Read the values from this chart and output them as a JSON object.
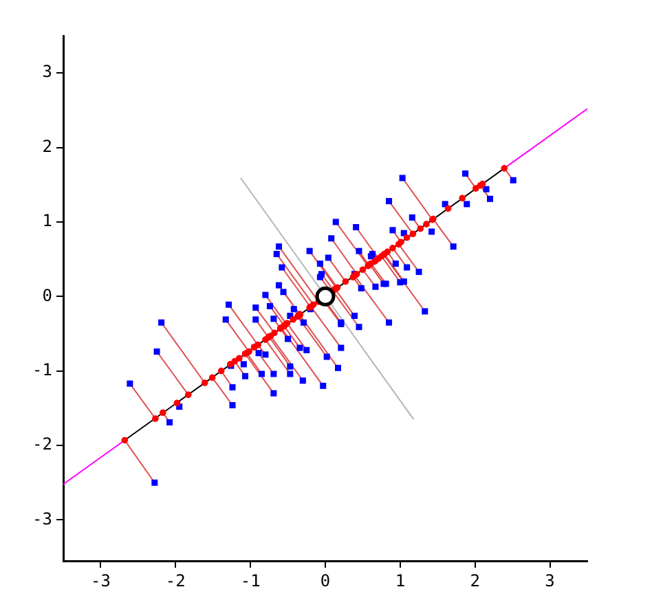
{
  "chart_data": {
    "type": "scatter",
    "xlim": [
      -3.5,
      3.5
    ],
    "ylim": [
      -3.55,
      3.5
    ],
    "xticks": [
      -3,
      -2,
      -1,
      0,
      1,
      2,
      3
    ],
    "yticks": [
      -3,
      -2,
      -1,
      0,
      1,
      2,
      3
    ],
    "grid": false,
    "legend": false,
    "series": [
      {
        "type": "line",
        "color": "#e05050",
        "marker": "none",
        "x": [
          -1.29,
          -0.9,
          null,
          -1.33,
          -1.02,
          null,
          -2.19,
          -1.61,
          null,
          -2.25,
          -1.83,
          null,
          -2.61,
          -2.27,
          null,
          -2.28,
          -2.68,
          null,
          -2.08,
          -2.17,
          null,
          -1.24,
          -1.51,
          null,
          -1.24,
          -1.39,
          null,
          -1.07,
          -1.21,
          null,
          -1.09,
          -1.15,
          null,
          -0.89,
          -0.95,
          null,
          -0.8,
          -0.9,
          null,
          -0.85,
          -1.05,
          null,
          -0.69,
          -0.95,
          null,
          -0.69,
          -1.07,
          null,
          -0.47,
          -0.8,
          null,
          -0.47,
          -0.75,
          null,
          -0.3,
          -0.73,
          null,
          -0.03,
          -0.59,
          null,
          0.02,
          -0.37,
          null,
          0.17,
          -0.34,
          null,
          -0.34,
          -0.55,
          null,
          -0.25,
          -0.51,
          null,
          0.21,
          -0.19,
          null,
          -0.5,
          -0.6,
          null,
          -0.93,
          -0.68,
          null,
          -0.74,
          -0.55,
          null,
          -0.93,
          -0.76,
          null,
          -0.8,
          -0.52,
          null,
          -0.56,
          -0.34,
          null,
          -0.62,
          -0.34,
          null,
          -0.69,
          -0.6,
          null,
          -0.42,
          -0.36,
          null,
          -0.07,
          0.08,
          null,
          1.03,
          1.43,
          null,
          0.85,
          1.17,
          null,
          0.14,
          0.57,
          null,
          0.41,
          0.71,
          null,
          0.08,
          0.42,
          null,
          0.45,
          0.58,
          null,
          -0.21,
          0.15,
          null,
          -0.62,
          -0.09,
          null,
          -0.65,
          -0.16,
          null,
          -0.58,
          -0.2,
          null,
          -0.07,
          0.16,
          null,
          0.04,
          0.27,
          null,
          -0.05,
          0.11,
          null,
          -0.29,
          -0.36,
          null,
          0.21,
          -0.03,
          null,
          0.39,
          0.13,
          null,
          0.45,
          0.1,
          null,
          0.85,
          0.39,
          null,
          0.48,
          0.37,
          null,
          0.67,
          0.5,
          null,
          0.78,
          0.59,
          null,
          0.63,
          0.68,
          null,
          0.94,
          0.83,
          null,
          1.05,
          0.79,
          null,
          0.9,
          1.01,
          null,
          1.87,
          2.01,
          null,
          2.2,
          2.07,
          null,
          2.51,
          2.39,
          null,
          1.71,
          1.44,
          null,
          1.16,
          1.27,
          null,
          1.25,
          0.98,
          null,
          1.09,
          0.9,
          null,
          1.0,
          0.75,
          null,
          0.81,
          0.61,
          null,
          1.33,
          0.78,
          null,
          0.21,
          -0.04
        ],
        "values": [
          -0.11,
          -0.65,
          null,
          -0.31,
          -0.74,
          null,
          -0.35,
          -1.16,
          null,
          -0.74,
          -1.32,
          null,
          -1.17,
          -1.64,
          null,
          -2.5,
          -1.93,
          null,
          -1.69,
          -1.56,
          null,
          -1.46,
          -1.09,
          null,
          -1.22,
          -1.0,
          null,
          -1.07,
          -0.87,
          null,
          -0.91,
          -0.83,
          null,
          -0.76,
          -0.68,
          null,
          -0.78,
          -0.65,
          null,
          -1.04,
          -0.76,
          null,
          -1.04,
          -0.68,
          null,
          -1.3,
          -0.77,
          null,
          -1.04,
          -0.58,
          null,
          -0.94,
          -0.54,
          null,
          -1.13,
          -0.53,
          null,
          -1.2,
          -0.42,
          null,
          -0.81,
          -0.27,
          null,
          -0.96,
          -0.25,
          null,
          -0.69,
          -0.4,
          null,
          -0.72,
          -0.36,
          null,
          -0.69,
          -0.14,
          null,
          -0.57,
          -0.43,
          null,
          -0.15,
          -0.49,
          null,
          -0.13,
          -0.39,
          null,
          -0.31,
          -0.55,
          null,
          0.02,
          -0.37,
          null,
          0.06,
          -0.24,
          null,
          0.15,
          -0.24,
          null,
          -0.3,
          -0.43,
          null,
          -0.17,
          -0.26,
          null,
          0.26,
          0.06,
          null,
          1.59,
          1.03,
          null,
          1.28,
          0.84,
          null,
          1.0,
          0.41,
          null,
          0.93,
          0.51,
          null,
          0.78,
          0.3,
          null,
          0.61,
          0.42,
          null,
          0.61,
          0.11,
          null,
          0.67,
          -0.07,
          null,
          0.57,
          -0.11,
          null,
          0.39,
          -0.14,
          null,
          0.44,
          0.12,
          null,
          0.52,
          0.2,
          null,
          0.3,
          0.08,
          null,
          -0.35,
          -0.26,
          null,
          -0.35,
          -0.02,
          null,
          -0.26,
          0.1,
          null,
          -0.41,
          0.07,
          null,
          -0.35,
          0.28,
          null,
          0.11,
          0.26,
          null,
          0.13,
          0.36,
          null,
          0.17,
          0.43,
          null,
          0.57,
          0.49,
          null,
          0.44,
          0.6,
          null,
          0.2,
          0.57,
          null,
          0.89,
          0.73,
          null,
          1.65,
          1.45,
          null,
          1.31,
          1.49,
          null,
          1.56,
          1.72,
          null,
          0.67,
          1.04,
          null,
          1.06,
          0.91,
          null,
          0.33,
          0.7,
          null,
          0.39,
          0.65,
          null,
          0.19,
          0.54,
          null,
          0.17,
          0.44,
          null,
          -0.2,
          0.56,
          null,
          -0.37,
          -0.03
        ]
      },
      {
        "type": "line",
        "color": "#000000",
        "marker": "none",
        "x": [
          -2.68,
          2.39
        ],
        "values": [
          -1.93,
          1.72
        ]
      },
      {
        "type": "line",
        "color": "#ff00ff",
        "marker": "none",
        "x": [
          -3.5,
          -2.68
        ],
        "values": [
          -2.52,
          -1.93
        ]
      },
      {
        "type": "line",
        "color": "#ff00ff",
        "marker": "none",
        "x": [
          2.39,
          3.5
        ],
        "values": [
          1.72,
          2.52
        ]
      },
      {
        "type": "line",
        "color": "#b4b4b4",
        "marker": "none",
        "x": [
          -1.13,
          1.18
        ],
        "values": [
          1.59,
          -1.65
        ]
      },
      {
        "color": "#0000ff",
        "marker": "square",
        "x": [
          -1.29,
          -1.33,
          -2.19,
          -2.25,
          -2.61,
          -2.28,
          -1.95,
          -2.08,
          -1.24,
          -1.24,
          -1.07,
          -1.26,
          -1.09,
          -0.89,
          -0.8,
          -0.85,
          -0.69,
          -0.69,
          -0.47,
          -0.47,
          -0.3,
          -0.03,
          0.02,
          0.17,
          -0.34,
          -0.25,
          0.21,
          -0.5,
          -0.93,
          -0.74,
          -0.93,
          -0.8,
          -0.56,
          -0.62,
          -0.69,
          -0.42,
          -0.07,
          1.03,
          0.85,
          0.14,
          0.41,
          0.08,
          0.45,
          -0.21,
          -0.62,
          -0.65,
          -0.58,
          -0.07,
          0.04,
          -0.05,
          -0.47,
          -0.29,
          -0.2,
          0.21,
          0.39,
          0.45,
          0.85,
          0.39,
          0.48,
          0.67,
          0.78,
          0.63,
          0.94,
          1.05,
          0.9,
          1.87,
          2.15,
          2.2,
          2.51,
          1.6,
          1.89,
          1.71,
          1.16,
          1.42,
          1.05,
          1.25,
          1.09,
          1.0,
          0.81,
          1.33,
          0.21,
          0.61
        ],
        "values": [
          -0.11,
          -0.31,
          -0.35,
          -0.74,
          -1.17,
          -2.5,
          -1.48,
          -1.69,
          -1.46,
          -1.22,
          -1.07,
          -0.93,
          -0.91,
          -0.76,
          -0.78,
          -1.04,
          -1.04,
          -1.3,
          -1.04,
          -0.94,
          -1.13,
          -1.2,
          -0.81,
          -0.96,
          -0.69,
          -0.72,
          -0.69,
          -0.57,
          -0.15,
          -0.13,
          -0.31,
          0.02,
          0.06,
          0.15,
          -0.3,
          -0.17,
          0.26,
          1.59,
          1.28,
          1.0,
          0.93,
          0.78,
          0.61,
          0.61,
          0.67,
          0.57,
          0.39,
          0.44,
          0.52,
          0.3,
          -0.26,
          -0.35,
          -0.17,
          -0.35,
          -0.26,
          -0.41,
          -0.35,
          0.3,
          0.11,
          0.13,
          0.17,
          0.57,
          0.44,
          0.2,
          0.89,
          1.65,
          1.44,
          1.31,
          1.56,
          1.24,
          1.24,
          0.67,
          1.06,
          0.87,
          0.85,
          0.33,
          0.39,
          0.19,
          0.17,
          -0.2,
          -0.37,
          0.54
        ]
      },
      {
        "color": "#ff0000",
        "marker": "circle",
        "x": [
          -0.9,
          -1.02,
          -1.61,
          -1.83,
          -2.27,
          -2.68,
          -1.98,
          -2.17,
          -1.51,
          -1.39,
          -1.21,
          -1.27,
          -1.15,
          -0.95,
          -0.9,
          -1.05,
          -0.95,
          -1.07,
          -0.8,
          -0.75,
          -0.73,
          -0.59,
          -0.37,
          -0.34,
          -0.55,
          -0.51,
          -0.19,
          -0.6,
          -0.68,
          -0.55,
          -0.76,
          -0.52,
          -0.34,
          -0.34,
          -0.6,
          -0.36,
          1.43,
          1.17,
          0.57,
          0.71,
          0.42,
          0.58,
          0.15,
          -0.09,
          -0.16,
          -0.2,
          0.16,
          0.27,
          0.11,
          -0.43,
          -0.36,
          -0.21,
          0.13,
          0.39,
          0.4,
          0.37,
          0.5,
          0.59,
          0.68,
          0.83,
          0.79,
          1.01,
          2.01,
          2.1,
          2.07,
          2.39,
          1.64,
          1.83,
          1.44,
          1.27,
          1.35,
          1.09,
          0.98,
          0.9,
          0.75,
          0.61,
          0.78,
          0.66
        ],
        "values": [
          -0.65,
          -0.74,
          -1.16,
          -1.32,
          -1.64,
          -1.93,
          -1.43,
          -1.56,
          -1.09,
          -1.0,
          -0.87,
          -0.91,
          -0.83,
          -0.68,
          -0.65,
          -0.76,
          -0.68,
          -0.77,
          -0.58,
          -0.54,
          -0.53,
          -0.42,
          -0.27,
          -0.25,
          -0.4,
          -0.36,
          -0.14,
          -0.43,
          -0.49,
          -0.39,
          -0.55,
          -0.37,
          -0.24,
          -0.24,
          -0.43,
          -0.26,
          1.03,
          0.84,
          0.41,
          0.51,
          0.3,
          0.42,
          0.11,
          -0.07,
          -0.11,
          -0.14,
          0.12,
          0.2,
          0.08,
          -0.31,
          -0.26,
          -0.15,
          0.1,
          0.28,
          0.29,
          0.26,
          0.36,
          0.43,
          0.49,
          0.6,
          0.57,
          0.73,
          1.45,
          1.51,
          1.49,
          1.72,
          1.18,
          1.32,
          1.04,
          0.91,
          0.97,
          0.79,
          0.7,
          0.65,
          0.54,
          0.44,
          0.56,
          0.47
        ]
      },
      {
        "color": "#ffffff",
        "marker": "circle",
        "x": [
          0
        ],
        "values": [
          0
        ]
      }
    ]
  }
}
